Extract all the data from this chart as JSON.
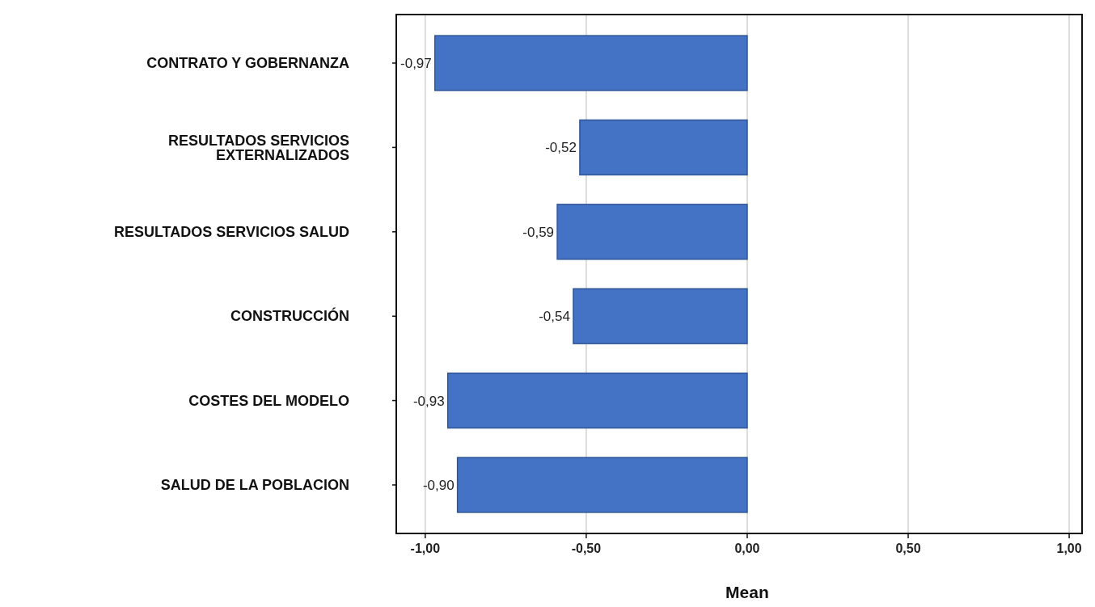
{
  "chart_data": {
    "type": "bar",
    "orientation": "horizontal",
    "xlabel": "Mean",
    "categories": [
      "CONTRATO Y GOBERNANZA",
      "RESULTADOS SERVICIOS EXTERNALIZADOS",
      "RESULTADOS SERVICIOS SALUD",
      "CONSTRUCCIÓN",
      "COSTES DEL MODELO",
      "SALUD DE LA POBLACION"
    ],
    "values": [
      -0.97,
      -0.52,
      -0.59,
      -0.54,
      -0.93,
      -0.9
    ],
    "value_labels": [
      "-0,97",
      "-0,52",
      "-0,59",
      "-0,54",
      "-0,93",
      "-0,90"
    ],
    "color": "#4472c4",
    "xlim": [
      -1.09,
      1.04
    ],
    "xticks": [
      {
        "value": -1,
        "label": "-1,00"
      },
      {
        "value": -0.5,
        "label": "-0,50"
      },
      {
        "value": 0,
        "label": "0,00"
      },
      {
        "value": 0.5,
        "label": "0,50"
      },
      {
        "value": 1,
        "label": "1,00"
      }
    ],
    "grid": "x"
  }
}
